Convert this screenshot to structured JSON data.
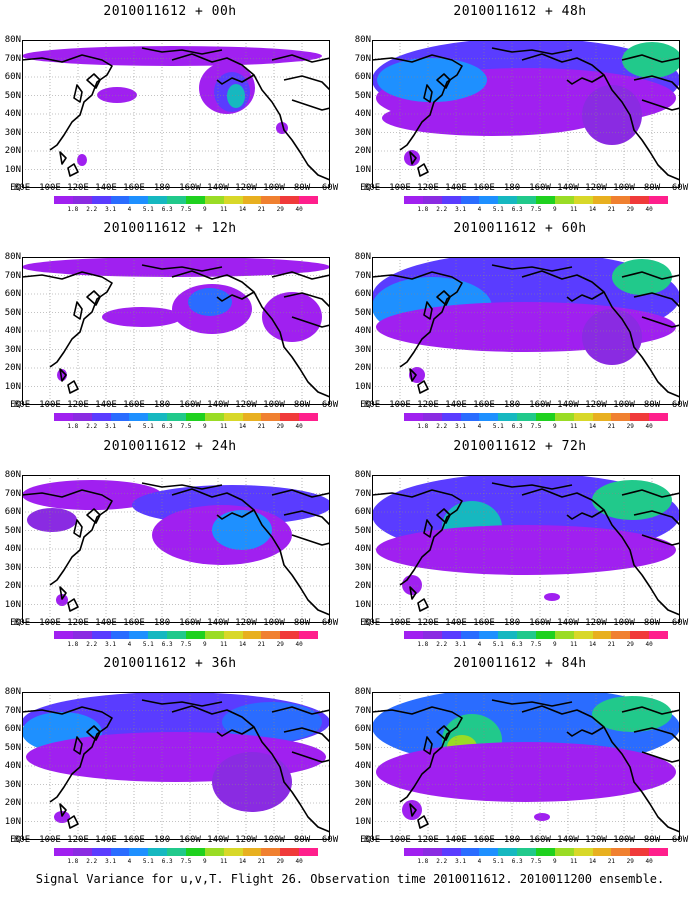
{
  "caption": "Signal Variance for u,v,T. Flight 26. Observation time 2010011612. 2010011200 ensemble.",
  "lat_labels": [
    "80N",
    "70N",
    "60N",
    "50N",
    "40N",
    "30N",
    "20N",
    "10N",
    "EQ"
  ],
  "lon_labels": [
    "80E",
    "100E",
    "120E",
    "140E",
    "160E",
    "180",
    "160W",
    "140W",
    "120W",
    "100W",
    "80W",
    "60W"
  ],
  "colorbar": {
    "labels": [
      "1.8",
      "2.2",
      "3.1",
      "4",
      "5.1",
      "6.3",
      "7.5",
      "9",
      "11",
      "14",
      "21",
      "29",
      "40"
    ],
    "colors": [
      "#a020f0",
      "#8a2be2",
      "#5a3cff",
      "#2a6cff",
      "#1e90ff",
      "#16b8c0",
      "#21c98b",
      "#1fd11f",
      "#9adc25",
      "#d8d829",
      "#e8b020",
      "#f08030",
      "#f03a3a",
      "#ff1f8c"
    ]
  },
  "panels": [
    {
      "title": "2010011612 + 00h"
    },
    {
      "title": "2010011612 + 48h"
    },
    {
      "title": "2010011612 + 12h"
    },
    {
      "title": "2010011612 + 60h"
    },
    {
      "title": "2010011612 + 24h"
    },
    {
      "title": "2010011612 + 72h"
    },
    {
      "title": "2010011612 + 36h"
    },
    {
      "title": "2010011612 + 84h"
    }
  ]
}
